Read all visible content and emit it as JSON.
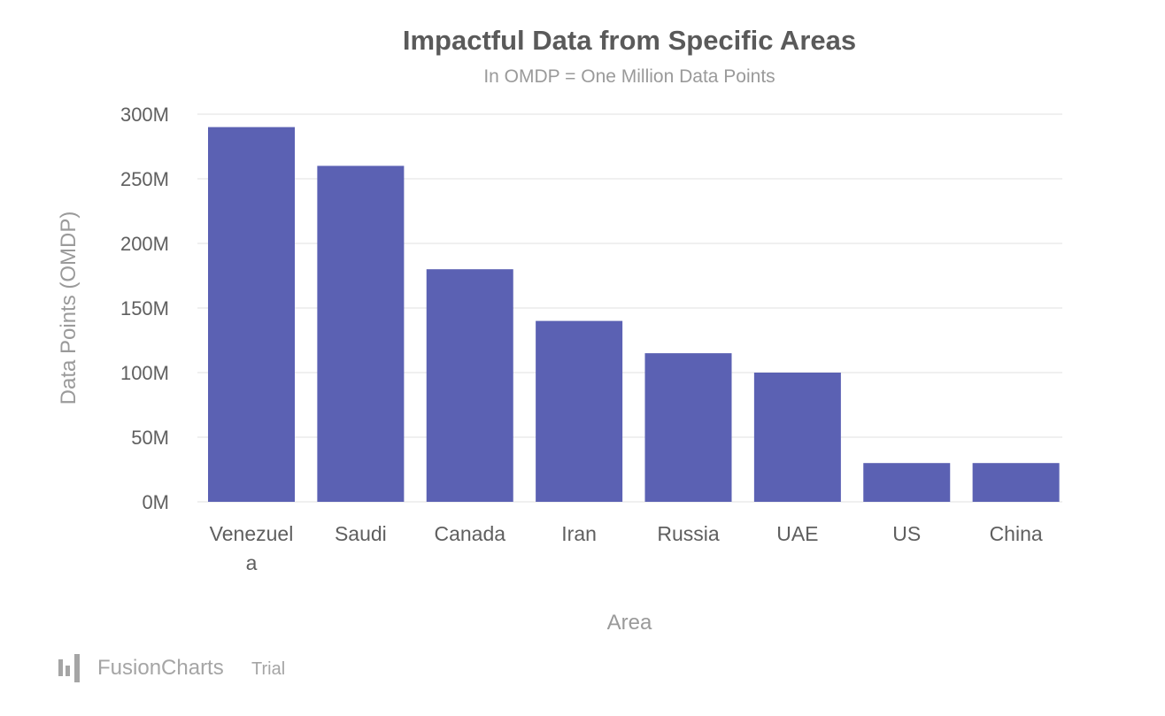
{
  "watermark": {
    "brand": "FusionCharts",
    "suffix": "Trial"
  },
  "colors": {
    "bar": "#5b61b3",
    "grid": "#ececec",
    "title": "#5a5a5a",
    "muted": "#9a9a9a"
  },
  "chart_data": {
    "type": "bar",
    "title": "Impactful Data from Specific Areas",
    "subtitle": "In OMDP = One Million Data Points",
    "xlabel": "Area",
    "ylabel": "Data Points (OMDP)",
    "categories": [
      "Venezuela",
      "Saudi",
      "Canada",
      "Iran",
      "Russia",
      "UAE",
      "US",
      "China"
    ],
    "category_labels": [
      [
        "Venezuel",
        "a"
      ],
      [
        "Saudi"
      ],
      [
        "Canada"
      ],
      [
        "Iran"
      ],
      [
        "Russia"
      ],
      [
        "UAE"
      ],
      [
        "US"
      ],
      [
        "China"
      ]
    ],
    "values": [
      290,
      260,
      180,
      140,
      115,
      100,
      30,
      30
    ],
    "ylim": [
      0,
      300
    ],
    "yticks": [
      0,
      50,
      100,
      150,
      200,
      250,
      300
    ],
    "ytick_labels": [
      "0M",
      "50M",
      "100M",
      "150M",
      "200M",
      "250M",
      "300M"
    ],
    "grid": true,
    "legend": "none"
  }
}
